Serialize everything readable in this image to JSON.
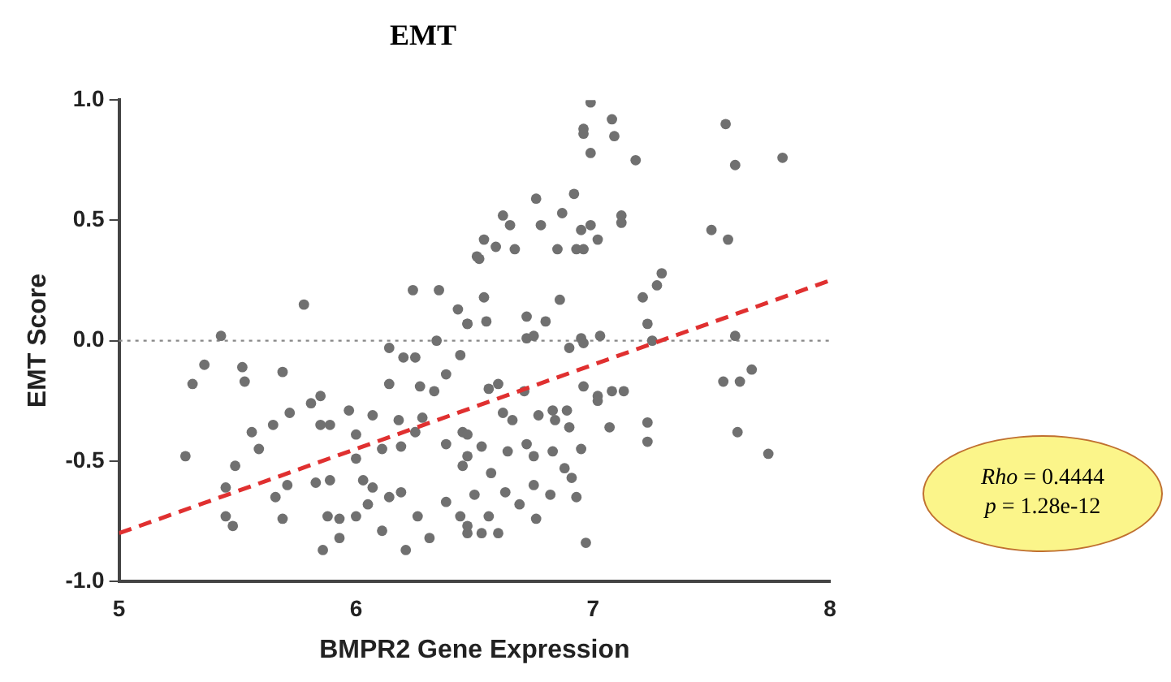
{
  "chart_data": {
    "type": "scatter",
    "title": "EMT",
    "xlabel": "BMPR2 Gene Expression",
    "ylabel": "EMT Score",
    "xlim": [
      5,
      8
    ],
    "xticks": [
      5,
      6,
      7,
      8
    ],
    "ylim": [
      -1,
      1
    ],
    "yticks": [
      {
        "value": -1,
        "label": "-1.0"
      },
      {
        "value": -0.5,
        "label": "-0.5"
      },
      {
        "value": 0,
        "label": "0.0"
      },
      {
        "value": 0.5,
        "label": "0.5"
      },
      {
        "value": 1,
        "label": "1.0"
      }
    ],
    "grid": false,
    "legend": false,
    "marker": "circle",
    "ref_lines": [
      {
        "axis": "y",
        "value": 0,
        "color": "#888888",
        "line_style": "dotted"
      }
    ],
    "annotations": [
      "Rho = 0.4444",
      "p = 1.28e-12"
    ],
    "series": [
      {
        "type": "scatter",
        "color": "#707070",
        "x": [
          5.78,
          5.43,
          5.36,
          5.31,
          5.52,
          5.53,
          5.69,
          6.24,
          6.35,
          6.14,
          6.2,
          6.25,
          6.34,
          6.43,
          6.47,
          6.44,
          6.38,
          6.27,
          6.33,
          6.14,
          5.85,
          5.81,
          5.72,
          5.65,
          5.56,
          5.59,
          5.28,
          5.49,
          5.85,
          5.89,
          5.97,
          6.07,
          6.18,
          6.0,
          6.11,
          6.25,
          6.28,
          6.19,
          6.38,
          6.45,
          6.47,
          6.0,
          5.45,
          5.71,
          5.83,
          5.89,
          6.03,
          6.07,
          6.14,
          6.19,
          5.66,
          6.05,
          6.26,
          6.38,
          5.45,
          5.48,
          5.69,
          5.88,
          5.93,
          6.0,
          6.11,
          6.44,
          5.86,
          5.93,
          6.21,
          6.31,
          6.47,
          6.52,
          6.99,
          7.08,
          6.96,
          6.96,
          7.09,
          6.99,
          7.18,
          7.56,
          7.6,
          7.8,
          7.5,
          7.57,
          6.76,
          6.92,
          6.87,
          6.78,
          6.62,
          6.65,
          6.95,
          6.99,
          7.02,
          7.12,
          7.12,
          6.54,
          6.51,
          6.59,
          6.67,
          6.85,
          6.93,
          6.96,
          7.29,
          7.27,
          7.21,
          6.54,
          6.86,
          6.47,
          6.55,
          6.72,
          6.8,
          7.23,
          6.72,
          6.75,
          6.95,
          6.96,
          7.03,
          6.9,
          7.6,
          7.25,
          7.67,
          7.55,
          7.62,
          6.96,
          7.02,
          7.02,
          7.08,
          7.13,
          6.56,
          6.6,
          6.71,
          6.62,
          6.66,
          6.77,
          6.83,
          6.89,
          6.84,
          6.9,
          7.07,
          7.23,
          7.23,
          7.61,
          7.74,
          6.47,
          6.53,
          6.64,
          6.72,
          6.75,
          6.83,
          6.88,
          6.95,
          6.91,
          6.45,
          6.57,
          6.5,
          6.63,
          6.75,
          6.82,
          6.93,
          6.69,
          6.56,
          6.76,
          6.47,
          6.53,
          6.6,
          6.97
        ],
        "values": [
          0.15,
          0.02,
          -0.1,
          -0.18,
          -0.11,
          -0.17,
          -0.13,
          0.21,
          0.21,
          -0.03,
          -0.07,
          -0.07,
          0.0,
          0.13,
          0.07,
          -0.06,
          -0.14,
          -0.19,
          -0.21,
          -0.18,
          -0.23,
          -0.26,
          -0.3,
          -0.35,
          -0.38,
          -0.45,
          -0.48,
          -0.52,
          -0.35,
          -0.35,
          -0.29,
          -0.31,
          -0.33,
          -0.39,
          -0.45,
          -0.38,
          -0.32,
          -0.44,
          -0.43,
          -0.38,
          -0.48,
          -0.49,
          -0.61,
          -0.6,
          -0.59,
          -0.58,
          -0.58,
          -0.61,
          -0.65,
          -0.63,
          -0.65,
          -0.68,
          -0.73,
          -0.67,
          -0.73,
          -0.77,
          -0.74,
          -0.73,
          -0.74,
          -0.73,
          -0.79,
          -0.73,
          -0.87,
          -0.82,
          -0.87,
          -0.82,
          -0.8,
          0.34,
          0.99,
          0.92,
          0.88,
          0.86,
          0.85,
          0.78,
          0.75,
          0.9,
          0.73,
          0.76,
          0.46,
          0.42,
          0.59,
          0.61,
          0.53,
          0.48,
          0.52,
          0.48,
          0.46,
          0.48,
          0.42,
          0.52,
          0.49,
          0.42,
          0.35,
          0.39,
          0.38,
          0.38,
          0.38,
          0.38,
          0.28,
          0.23,
          0.18,
          0.18,
          0.17,
          0.07,
          0.08,
          0.1,
          0.08,
          0.07,
          0.01,
          0.02,
          0.01,
          -0.01,
          0.02,
          -0.03,
          0.02,
          0.0,
          -0.12,
          -0.17,
          -0.17,
          -0.19,
          -0.23,
          -0.25,
          -0.21,
          -0.21,
          -0.2,
          -0.18,
          -0.21,
          -0.3,
          -0.33,
          -0.31,
          -0.29,
          -0.29,
          -0.33,
          -0.36,
          -0.36,
          -0.34,
          -0.42,
          -0.38,
          -0.47,
          -0.39,
          -0.44,
          -0.46,
          -0.43,
          -0.48,
          -0.46,
          -0.53,
          -0.45,
          -0.57,
          -0.52,
          -0.55,
          -0.64,
          -0.63,
          -0.6,
          -0.64,
          -0.65,
          -0.68,
          -0.73,
          -0.74,
          -0.77,
          -0.8,
          -0.8,
          -0.84
        ]
      },
      {
        "type": "line",
        "color": "#e03030",
        "line_style": "dashed",
        "marker": "none",
        "x": [
          5,
          8
        ],
        "values": [
          -0.8,
          0.25
        ]
      }
    ]
  }
}
